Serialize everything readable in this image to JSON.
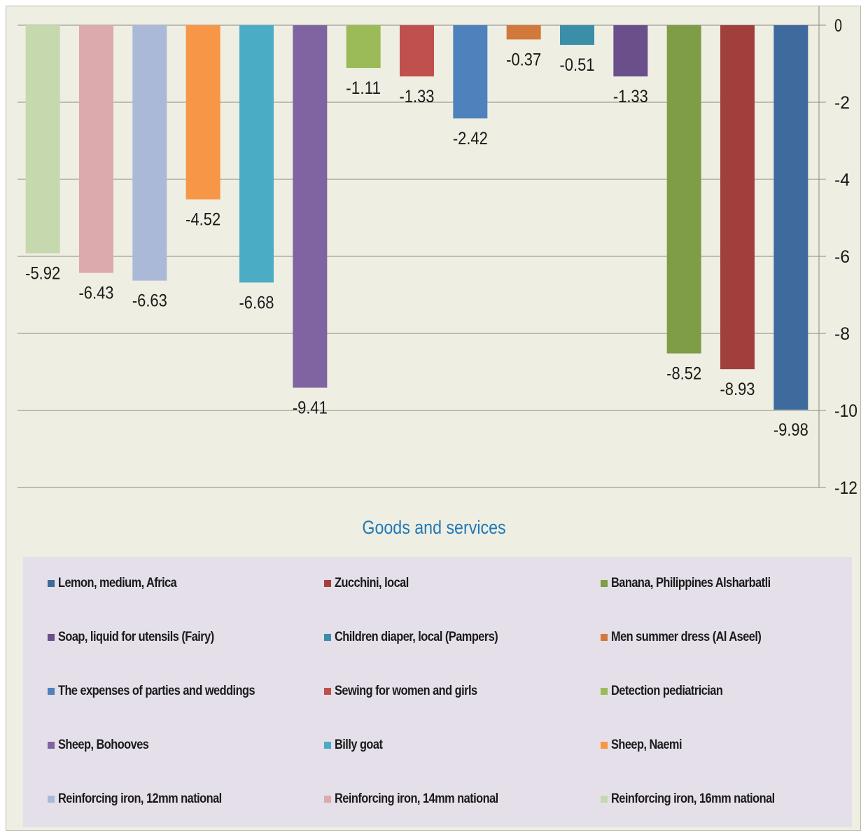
{
  "chart_data": {
    "type": "bar",
    "title": "",
    "xlabel": "Goods and services",
    "ylabel": "",
    "ylim": [
      -12,
      0
    ],
    "y_ticks": [
      "0",
      "-2",
      "-4",
      "-6",
      "-8",
      "-10",
      "-12"
    ],
    "y_axis_side": "right",
    "grid": true,
    "legend_position": "bottom",
    "series": [
      {
        "name": "Reinforcing iron, 16mm national",
        "value": -5.92,
        "label": "-5.92",
        "color": "#c6d8ae"
      },
      {
        "name": "Reinforcing iron, 14mm national",
        "value": -6.43,
        "label": "-6.43",
        "color": "#dcaaac"
      },
      {
        "name": "Reinforcing iron, 12mm national",
        "value": -6.63,
        "label": "-6.63",
        "color": "#aab9d8"
      },
      {
        "name": "Sheep, Naemi",
        "value": -4.52,
        "label": "-4.52",
        "color": "#f79646"
      },
      {
        "name": "Billy goat",
        "value": -6.68,
        "label": "-6.68",
        "color": "#4bacc6"
      },
      {
        "name": "Sheep, Bohooves",
        "value": -9.41,
        "label": "-9.41",
        "color": "#8064a2"
      },
      {
        "name": "Detection pediatrician",
        "value": -1.11,
        "label": "-1.11",
        "color": "#9bbb59"
      },
      {
        "name": "Sewing for women and girls",
        "value": -1.33,
        "label": "-1.33",
        "color": "#c0504d"
      },
      {
        "name": "The expenses of parties and weddings",
        "value": -2.42,
        "label": "-2.42",
        "color": "#4f81bd"
      },
      {
        "name": "Men summer dress (Al Aseel)",
        "value": -0.37,
        "label": "-0.37",
        "color": "#d0793a"
      },
      {
        "name": "Children diaper, local (Pampers)",
        "value": -0.51,
        "label": "-0.51",
        "color": "#3a8ea8"
      },
      {
        "name": "Soap, liquid for utensils (Fairy)",
        "value": -1.33,
        "label": "-1.33",
        "color": "#6b4f8b"
      },
      {
        "name": "Banana, Philippines Alsharbatli",
        "value": -8.52,
        "label": "-8.52",
        "color": "#7f9c47"
      },
      {
        "name": "Zucchini, local",
        "value": -8.93,
        "label": "-8.93",
        "color": "#a03f3c"
      },
      {
        "name": "Lemon, medium, Africa",
        "value": -9.98,
        "label": "-9.98",
        "color": "#3f6a9e"
      }
    ]
  },
  "legend_order": [
    14,
    13,
    12,
    11,
    10,
    9,
    8,
    7,
    6,
    5,
    4,
    3,
    2,
    1,
    0
  ]
}
